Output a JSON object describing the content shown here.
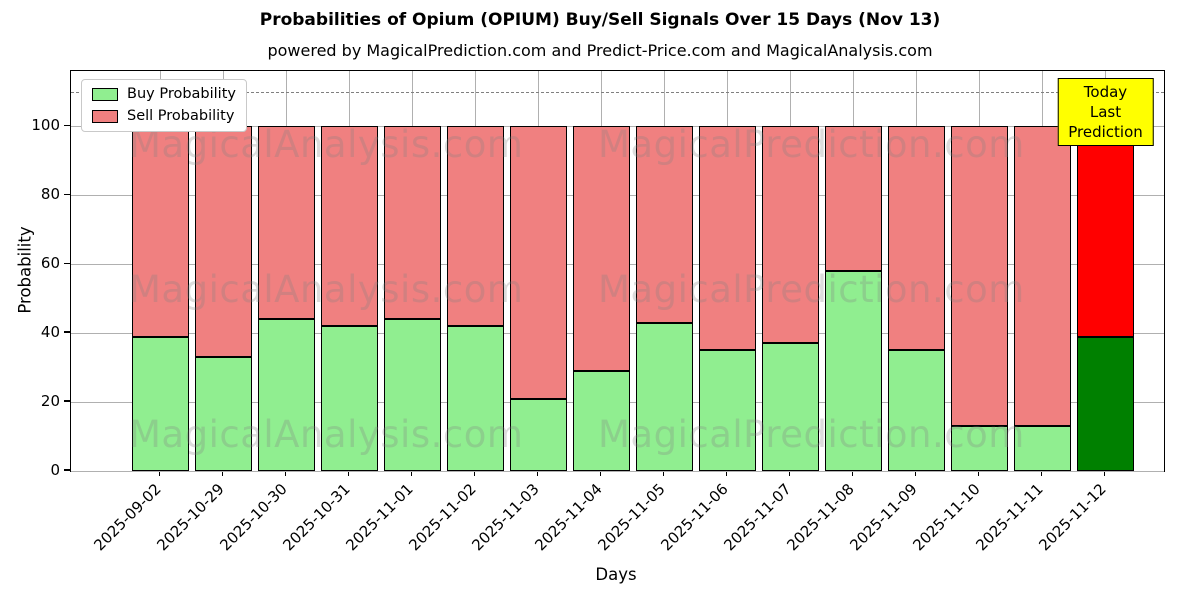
{
  "title": "Probabilities of Opium (OPIUM) Buy/Sell Signals Over 15 Days (Nov 13)",
  "subtitle": "powered by MagicalPrediction.com and Predict-Price.com and MagicalAnalysis.com",
  "axes": {
    "xlabel": "Days",
    "ylabel": "Probability",
    "yticks": [
      0,
      20,
      40,
      60,
      80,
      100
    ]
  },
  "legend": {
    "items": [
      {
        "label": "Buy Probability",
        "color": "#90ee90"
      },
      {
        "label": "Sell Probability",
        "color": "#f08080"
      }
    ]
  },
  "annotation": {
    "line1": "Today",
    "line2": "Last Prediction",
    "bg_color": "#ffff00"
  },
  "watermarks": {
    "left": "MagicalAnalysis.com",
    "right": "MagicalPrediction.com"
  },
  "chart_data": {
    "type": "bar",
    "stacked": true,
    "title": "Probabilities of Opium (OPIUM) Buy/Sell Signals Over 15 Days (Nov 13)",
    "xlabel": "Days",
    "ylabel": "Probability",
    "ylim": [
      0,
      116
    ],
    "grid": true,
    "dashed_line_y": 110,
    "legend_position": "upper left",
    "categories": [
      "2025-09-02",
      "2025-10-29",
      "2025-10-30",
      "2025-10-31",
      "2025-11-01",
      "2025-11-02",
      "2025-11-03",
      "2025-11-04",
      "2025-11-05",
      "2025-11-06",
      "2025-11-07",
      "2025-11-08",
      "2025-11-09",
      "2025-11-10",
      "2025-11-11",
      "2025-11-12"
    ],
    "series": [
      {
        "name": "Buy Probability",
        "color": "#90ee90",
        "values": [
          39,
          33,
          44,
          42,
          44,
          42,
          21,
          29,
          43,
          35,
          37,
          58,
          35,
          13,
          13,
          39
        ]
      },
      {
        "name": "Sell Probability",
        "color": "#f08080",
        "values": [
          61,
          67,
          56,
          58,
          56,
          58,
          79,
          71,
          57,
          65,
          63,
          42,
          65,
          87,
          87,
          61
        ]
      }
    ],
    "highlight": {
      "index": 15,
      "buy_color": "#008000",
      "sell_color": "#ff0000",
      "top_edge_color": "#ffa500",
      "annotation": "Today Last Prediction"
    }
  }
}
